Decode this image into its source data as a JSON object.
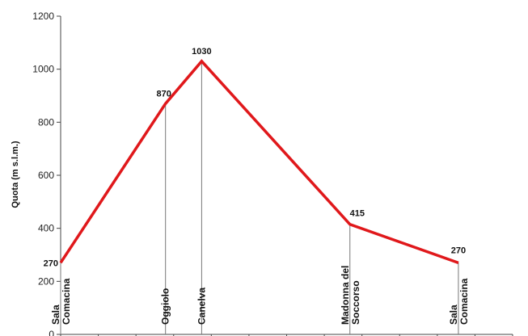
{
  "chart_data": {
    "type": "line",
    "ylabel": "Quota (m s.l.m.)",
    "ylim": [
      0,
      1200
    ],
    "yticks": [
      "0",
      "200",
      "400",
      "600",
      "800",
      "1000",
      "1200"
    ],
    "series_color": "#e0181b",
    "points": [
      {
        "x": 0,
        "y": 270,
        "label": "270",
        "location": [
          "Sala",
          "Comacina"
        ]
      },
      {
        "x": 2.9,
        "y": 870,
        "label": "870",
        "location": [
          "Oggiolo"
        ]
      },
      {
        "x": 3.9,
        "y": 1030,
        "label": "1030",
        "location": [
          "Canelva"
        ]
      },
      {
        "x": 8,
        "y": 415,
        "label": "415",
        "location": [
          "Madonna del",
          "Soccorso"
        ]
      },
      {
        "x": 11,
        "y": 270,
        "label": "270",
        "location": [
          "Sala",
          "Comacina"
        ]
      }
    ],
    "xlim": [
      0,
      12.5
    ],
    "xtick_count": 13,
    "grid": false
  }
}
